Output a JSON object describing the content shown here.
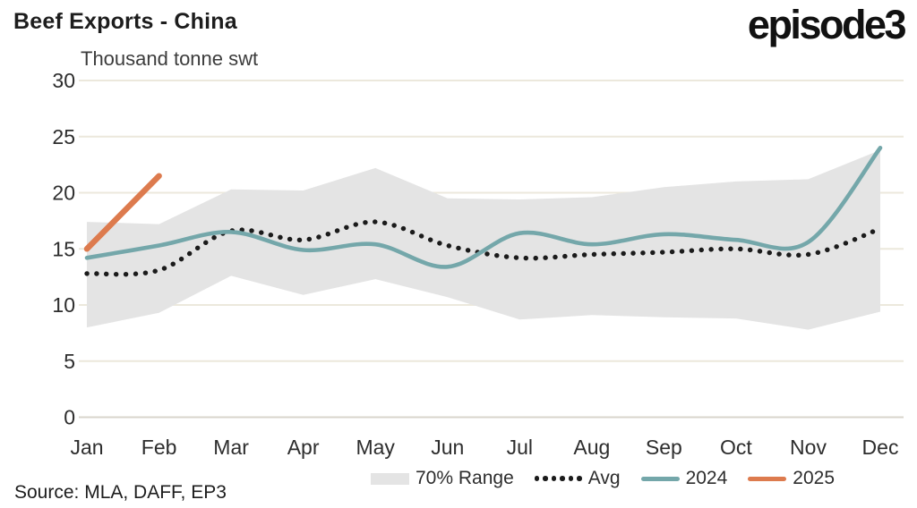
{
  "header": {
    "title": "Beef Exports - China",
    "logo": "episode3"
  },
  "footer": {
    "source": "Source: MLA, DAFF, EP3"
  },
  "chart_data": {
    "type": "line",
    "title": "Beef Exports - China",
    "ylabel": "Thousand tonne swt",
    "xlabel": "",
    "ylim": [
      0,
      30
    ],
    "y_ticks": [
      0,
      5,
      10,
      15,
      20,
      25,
      30
    ],
    "grid": "horizontal",
    "legend_position": "bottom",
    "categories": [
      "Jan",
      "Feb",
      "Mar",
      "Apr",
      "May",
      "Jun",
      "Jul",
      "Aug",
      "Sep",
      "Oct",
      "Nov",
      "Dec"
    ],
    "series": [
      {
        "name": "70% Range",
        "type": "band",
        "color": "#e4e4e4",
        "upper": [
          17.4,
          17.2,
          20.3,
          20.2,
          22.2,
          19.5,
          19.4,
          19.6,
          20.5,
          21.0,
          21.2,
          23.8
        ],
        "lower": [
          8.0,
          9.3,
          12.6,
          10.9,
          12.3,
          10.7,
          8.7,
          9.1,
          8.9,
          8.8,
          7.8,
          9.4
        ]
      },
      {
        "name": "Avg",
        "type": "dotted",
        "color": "#1b1b1b",
        "values": [
          12.8,
          13.1,
          16.6,
          15.8,
          17.4,
          15.3,
          14.2,
          14.5,
          14.7,
          15.0,
          14.5,
          16.8
        ]
      },
      {
        "name": "2024",
        "type": "line",
        "color": "#74a7aa",
        "values": [
          14.2,
          15.3,
          16.5,
          14.9,
          15.4,
          13.4,
          16.4,
          15.4,
          16.3,
          15.8,
          15.6,
          24.0
        ]
      },
      {
        "name": "2025",
        "type": "line",
        "color": "#dd7b4e",
        "values": [
          15.0,
          21.5
        ]
      }
    ],
    "colors": {
      "grid_line": "#ece8dc",
      "zero_line": "#d8d5cc",
      "tick_text": "#2d2d2d"
    }
  }
}
